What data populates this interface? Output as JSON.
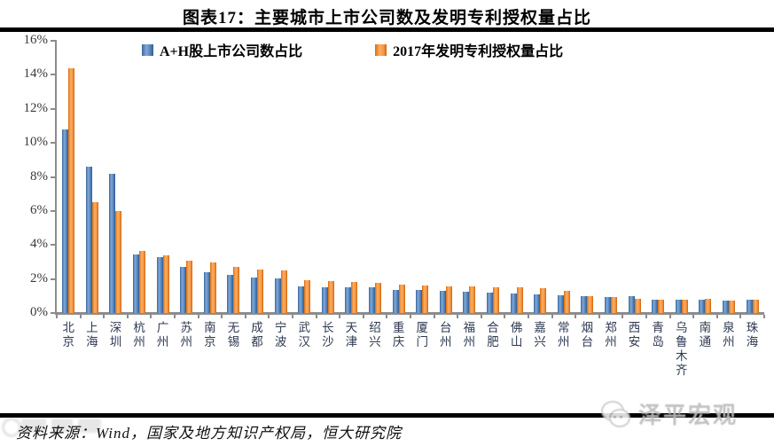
{
  "title": "图表17：主要城市上市公司数及发明专利授权量占比",
  "chart_data": {
    "type": "bar",
    "categories": [
      "北京",
      "上海",
      "深圳",
      "杭州",
      "广州",
      "苏州",
      "南京",
      "无锡",
      "成都",
      "宁波",
      "武汉",
      "长沙",
      "天津",
      "绍兴",
      "重庆",
      "厦门",
      "台州",
      "福州",
      "合肥",
      "佛山",
      "嘉兴",
      "常州",
      "烟台",
      "郑州",
      "西安",
      "青岛",
      "乌鲁木齐",
      "南通",
      "泉州",
      "珠海"
    ],
    "series": [
      {
        "name": "A+H股上市公司数占比",
        "color": "#4f81bd",
        "values": [
          10.8,
          8.6,
          8.2,
          3.45,
          3.3,
          2.7,
          2.4,
          2.25,
          2.1,
          2.05,
          1.55,
          1.5,
          1.5,
          1.5,
          1.35,
          1.35,
          1.3,
          1.25,
          1.2,
          1.15,
          1.1,
          1.05,
          1.0,
          0.95,
          1.0,
          0.8,
          0.8,
          0.8,
          0.75,
          0.8
        ]
      },
      {
        "name": "2017年发明专利授权量占比",
        "color": "#f79646",
        "values": [
          14.4,
          6.5,
          6.0,
          3.65,
          3.4,
          3.1,
          2.95,
          2.7,
          2.55,
          2.5,
          1.95,
          1.9,
          1.85,
          1.75,
          1.65,
          1.6,
          1.55,
          1.55,
          1.5,
          1.5,
          1.45,
          1.3,
          1.0,
          0.95,
          0.85,
          0.8,
          0.8,
          0.85,
          0.75,
          0.8
        ]
      }
    ],
    "ylim": [
      0,
      16
    ],
    "ytick_step": 2,
    "ytick_labels": [
      "0%",
      "2%",
      "4%",
      "6%",
      "8%",
      "10%",
      "12%",
      "14%",
      "16%"
    ],
    "legend_position": "top",
    "grid": false
  },
  "footer": {
    "source_text": "资料来源：Wind，国家及地方知识产权局，恒大研究院"
  },
  "watermark": {
    "text": "泽平宏观"
  }
}
